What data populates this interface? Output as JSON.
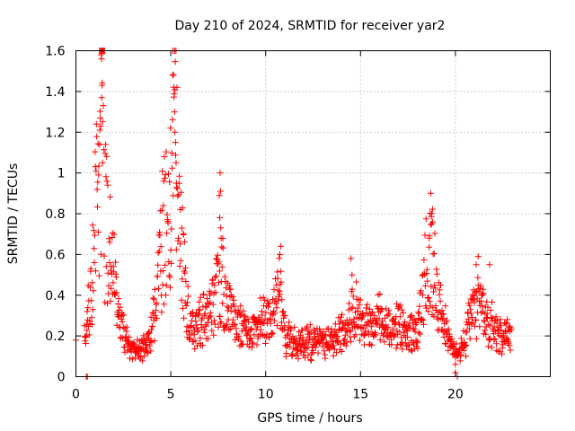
{
  "chart_data": {
    "type": "scatter",
    "title": "Day 210 of 2024, SRMTID for receiver yar2",
    "xlabel": "GPS time / hours",
    "ylabel": "SRMTID / TECUs",
    "xlim": [
      0,
      25
    ],
    "ylim": [
      0,
      1.6
    ],
    "xticks": [
      0,
      5,
      10,
      15,
      20
    ],
    "xtick_labels": [
      "0",
      "5",
      "10",
      "15",
      "20"
    ],
    "yticks": [
      0,
      0.2,
      0.4,
      0.6,
      0.8,
      1,
      1.2,
      1.4,
      1.6
    ],
    "ytick_labels": [
      "0",
      "0.2",
      "0.4",
      "0.6",
      "0.8",
      "1",
      "1.2",
      "1.4",
      "1.6"
    ],
    "grid": true,
    "marker": "plus",
    "marker_color": "#ff0000",
    "series": [
      {
        "name": "SRMTID",
        "profile": [
          [
            0.0,
            0.18
          ],
          [
            0.5,
            0.22
          ],
          [
            0.8,
            0.4
          ],
          [
            1.0,
            0.75
          ],
          [
            1.2,
            1.0
          ],
          [
            1.35,
            1.5
          ],
          [
            1.6,
            0.75
          ],
          [
            2.0,
            0.5
          ],
          [
            2.4,
            0.25
          ],
          [
            2.8,
            0.15
          ],
          [
            3.4,
            0.13
          ],
          [
            3.9,
            0.18
          ],
          [
            4.3,
            0.45
          ],
          [
            4.6,
            0.7
          ],
          [
            5.0,
            0.8
          ],
          [
            5.2,
            1.2
          ],
          [
            5.5,
            0.7
          ],
          [
            5.8,
            0.35
          ],
          [
            6.2,
            0.22
          ],
          [
            6.8,
            0.3
          ],
          [
            7.3,
            0.35
          ],
          [
            7.6,
            0.55
          ],
          [
            8.0,
            0.35
          ],
          [
            8.5,
            0.25
          ],
          [
            9.2,
            0.22
          ],
          [
            9.8,
            0.28
          ],
          [
            10.4,
            0.3
          ],
          [
            10.7,
            0.45
          ],
          [
            11.0,
            0.2
          ],
          [
            11.5,
            0.16
          ],
          [
            12.5,
            0.17
          ],
          [
            13.5,
            0.18
          ],
          [
            14.2,
            0.22
          ],
          [
            14.6,
            0.35
          ],
          [
            15.0,
            0.28
          ],
          [
            15.5,
            0.25
          ],
          [
            16.0,
            0.3
          ],
          [
            16.5,
            0.25
          ],
          [
            17.0,
            0.25
          ],
          [
            17.5,
            0.22
          ],
          [
            18.0,
            0.2
          ],
          [
            18.3,
            0.45
          ],
          [
            18.6,
            0.6
          ],
          [
            18.9,
            0.55
          ],
          [
            19.3,
            0.3
          ],
          [
            19.7,
            0.18
          ],
          [
            20.1,
            0.1
          ],
          [
            20.5,
            0.18
          ],
          [
            21.0,
            0.35
          ],
          [
            21.5,
            0.3
          ],
          [
            22.0,
            0.25
          ],
          [
            22.5,
            0.18
          ],
          [
            22.9,
            0.22
          ]
        ],
        "points": [
          [
            0.0,
            0.18
          ],
          [
            0.55,
            0.0
          ],
          [
            0.6,
            0.0
          ],
          [
            1.2,
            0.99
          ],
          [
            1.25,
            1.14
          ],
          [
            1.28,
            1.27
          ],
          [
            1.32,
            1.58
          ],
          [
            1.35,
            1.56
          ],
          [
            1.38,
            1.43
          ],
          [
            1.4,
            1.05
          ],
          [
            1.36,
            1.37
          ],
          [
            1.3,
            1.23
          ],
          [
            5.1,
            1.48
          ],
          [
            5.15,
            1.42
          ],
          [
            5.2,
            1.3
          ],
          [
            5.22,
            1.2
          ],
          [
            5.25,
            1.15
          ],
          [
            5.28,
            1.05
          ],
          [
            5.3,
            0.95
          ],
          [
            7.6,
            1.0
          ],
          [
            7.62,
            0.91
          ],
          [
            7.55,
            0.89
          ],
          [
            7.58,
            0.78
          ],
          [
            7.65,
            0.68
          ],
          [
            10.8,
            0.64
          ],
          [
            10.75,
            0.6
          ],
          [
            14.5,
            0.58
          ],
          [
            14.55,
            0.5
          ],
          [
            18.7,
            0.9
          ],
          [
            18.75,
            0.8
          ],
          [
            18.8,
            0.76
          ],
          [
            18.62,
            0.68
          ],
          [
            20.0,
            0.02
          ],
          [
            20.1,
            0.0
          ],
          [
            21.2,
            0.59
          ],
          [
            21.1,
            0.55
          ],
          [
            21.8,
            0.55
          ],
          [
            22.9,
            0.24
          ],
          [
            22.95,
            0.23
          ]
        ]
      }
    ]
  }
}
